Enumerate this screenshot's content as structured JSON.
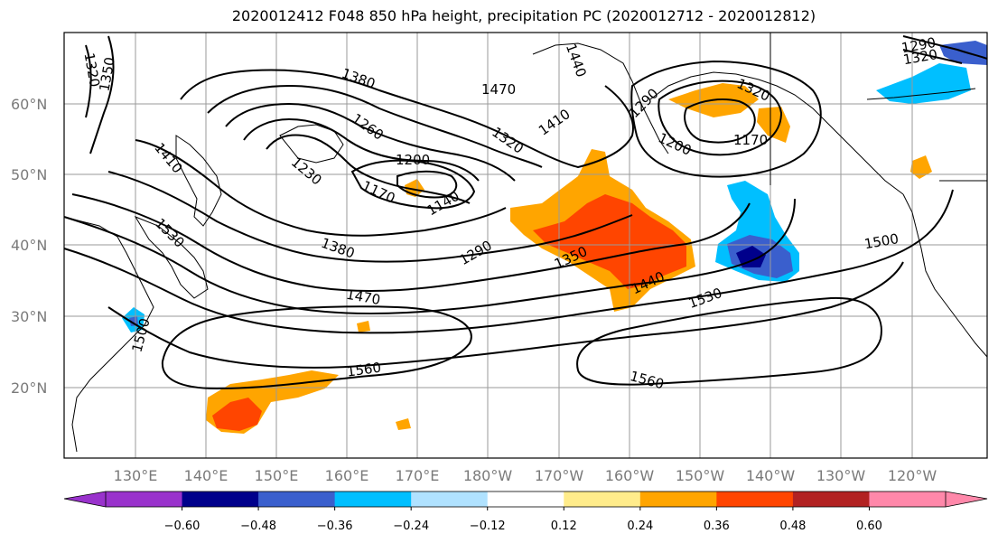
{
  "title": "2020012412 F048 850 hPa height, precipitation PC (2020012712 - 2020012812)",
  "map": {
    "lat_labels": [
      "60°N",
      "50°N",
      "40°N",
      "30°N",
      "20°N"
    ],
    "lon_labels": [
      "130°E",
      "140°E",
      "150°E",
      "160°E",
      "170°E",
      "180°W",
      "170°W",
      "160°W",
      "150°W",
      "140°W",
      "130°W",
      "120°W"
    ],
    "contour_labels": [
      "1320",
      "1350",
      "1440",
      "1380",
      "1470",
      "1410",
      "1290",
      "1320",
      "1260",
      "1200",
      "1170",
      "1200",
      "1170",
      "1140",
      "1230",
      "1410",
      "1320",
      "1530",
      "1290",
      "1350",
      "1380",
      "1440",
      "1500",
      "1470",
      "1530",
      "1500",
      "1560",
      "1560",
      "1290",
      "1320"
    ]
  },
  "colorbar": {
    "colors": [
      "#9932cc",
      "#00008b",
      "#3a5fcd",
      "#00bfff",
      "#b0e2ff",
      "#ffffff",
      "#ffec8b",
      "#ffa500",
      "#ff4500",
      "#b22222",
      "#ff88aa"
    ],
    "ticks": [
      "−0.60",
      "−0.48",
      "−0.36",
      "−0.24",
      "−0.12",
      "0.12",
      "0.24",
      "0.36",
      "0.48",
      "0.60"
    ]
  }
}
